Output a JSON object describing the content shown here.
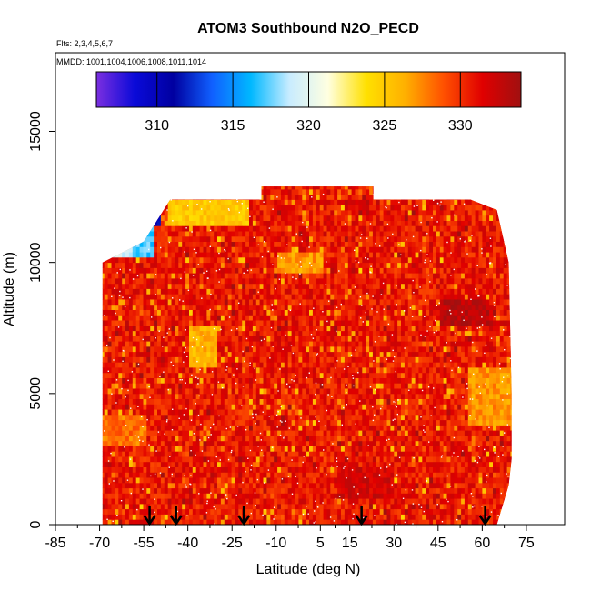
{
  "chart_data": {
    "type": "heatmap",
    "title": "ATOM3 Southbound N2O_PECD",
    "subtitle_flights": "Flts: 2,3,4,5,6,7",
    "subtitle_dates": "MMDD: 1001,1004,1006,1008,1011,1014",
    "xlabel": "Latitude (deg N)",
    "ylabel": "Altitude (m)",
    "xlim": [
      -85,
      88
    ],
    "ylim": [
      0,
      18000
    ],
    "x_ticks": [
      -85,
      -70,
      -55,
      -40,
      -25,
      -10,
      5,
      15,
      30,
      45,
      60,
      75
    ],
    "y_ticks": [
      0,
      5000,
      10000,
      15000
    ],
    "colorbar": {
      "range": [
        306,
        334
      ],
      "ticks": [
        310,
        315,
        320,
        325,
        330
      ],
      "colors": [
        "#7b2fe0",
        "#0a0ad8",
        "#0000a0",
        "#1060ff",
        "#00b8ff",
        "#c8ecff",
        "#ffffe0",
        "#ffe000",
        "#ffb000",
        "#ff5000",
        "#e00000",
        "#a01010"
      ]
    },
    "arrow_latitudes": [
      -53,
      -44,
      -21,
      19,
      61
    ],
    "curtain_profile": [
      {
        "lat": -69,
        "bottom": 0,
        "top": 10000
      },
      {
        "lat": -55,
        "bottom": 0,
        "top": 10800
      },
      {
        "lat": -46,
        "bottom": 0,
        "top": 12400
      },
      {
        "lat": -15,
        "bottom": 0,
        "top": 12400
      },
      {
        "lat": -15,
        "bottom": 0,
        "top": 12900
      },
      {
        "lat": 23,
        "bottom": 0,
        "top": 12900
      },
      {
        "lat": 23,
        "bottom": 0,
        "top": 12400
      },
      {
        "lat": 56,
        "bottom": 0,
        "top": 12400
      },
      {
        "lat": 65,
        "bottom": 0,
        "top": 12000
      },
      {
        "lat": 69,
        "bottom": 1500,
        "top": 10000
      },
      {
        "lat": 70,
        "bottom": 2500,
        "top": 5000
      }
    ],
    "features": [
      {
        "lat0": -47,
        "lat1": -20,
        "alt0": 11300,
        "alt1": 12400,
        "value": 325
      },
      {
        "lat0": -59,
        "lat1": -52,
        "alt0": 10100,
        "alt1": 11500,
        "value": 317
      },
      {
        "lat0": -66,
        "lat1": -59,
        "alt0": 10100,
        "alt1": 10500,
        "value": 319
      },
      {
        "lat0": -52,
        "lat1": -50,
        "alt0": 11300,
        "alt1": 11800,
        "value": 311
      },
      {
        "lat0": -40,
        "lat1": -30,
        "alt0": 6000,
        "alt1": 7500,
        "value": 326
      },
      {
        "lat0": 55,
        "lat1": 70,
        "alt0": 3800,
        "alt1": 6000,
        "value": 327
      },
      {
        "lat0": -10,
        "lat1": 5,
        "alt0": 9600,
        "alt1": 10400,
        "value": 327
      },
      {
        "lat0": 45,
        "lat1": 62,
        "alt0": 7500,
        "alt1": 8500,
        "value": 333
      },
      {
        "lat0": -70,
        "lat1": -55,
        "alt0": 3000,
        "alt1": 4200,
        "value": 328
      },
      {
        "lat0": 10,
        "lat1": 30,
        "alt0": 1000,
        "alt1": 2200,
        "value": 332
      }
    ]
  }
}
